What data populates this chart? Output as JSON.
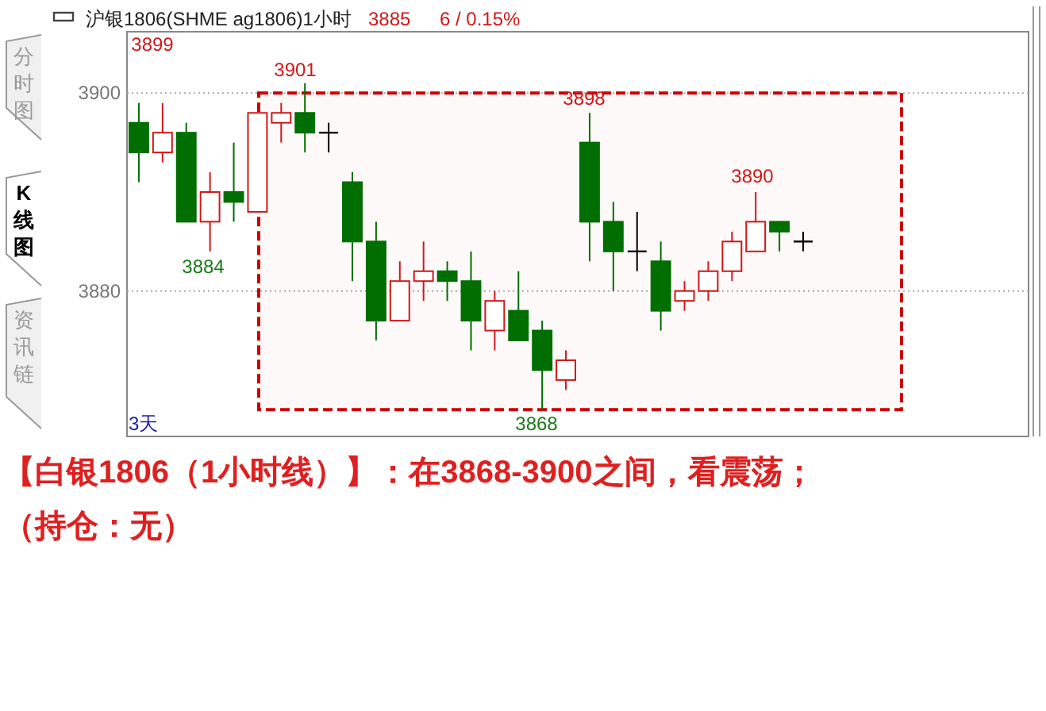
{
  "chart_data": {
    "type": "candlestick",
    "title": "沪银1806(SHME ag1806)1小时",
    "categories": [
      null,
      null,
      null,
      null,
      null,
      null,
      null,
      null,
      null,
      null,
      null,
      null,
      null,
      null,
      null,
      null,
      null,
      null,
      null,
      null,
      null,
      null,
      null,
      null,
      null,
      null,
      null,
      null,
      null,
      null,
      null,
      null,
      null,
      null,
      null,
      null,
      null,
      null
    ],
    "ohlc": [
      [
        3897,
        3899,
        3891,
        3894
      ],
      [
        3894,
        3899,
        3893,
        3896
      ],
      [
        3896,
        3897,
        3887,
        3887
      ],
      [
        3887,
        3892,
        3884,
        3890
      ],
      [
        3890,
        3895,
        3887,
        3889
      ],
      [
        3888,
        3898,
        3888,
        3898
      ],
      [
        3897,
        3899,
        3895,
        3898
      ],
      [
        3898,
        3901,
        3894,
        3896
      ],
      [
        3896,
        3897,
        3894,
        3896
      ],
      [
        3891,
        3892,
        3881,
        3885
      ],
      [
        3885,
        3887,
        3875,
        3877
      ],
      [
        3877,
        3883,
        3877,
        3881
      ],
      [
        3881,
        3885,
        3879,
        3882
      ],
      [
        3882,
        3883,
        3879,
        3881
      ],
      [
        3881,
        3884,
        3874,
        3877
      ],
      [
        3876,
        3880,
        3874,
        3879
      ],
      [
        3878,
        3882,
        3875,
        3875
      ],
      [
        3876,
        3877,
        3868,
        3872
      ],
      [
        3871,
        3874,
        3870,
        3873
      ],
      [
        3895,
        3898,
        3883,
        3887
      ],
      [
        3887,
        3889,
        3880,
        3884
      ],
      [
        3884,
        3888,
        3882,
        3884
      ],
      [
        3883,
        3885,
        3876,
        3878
      ],
      [
        3879,
        3881,
        3878,
        3880
      ],
      [
        3880,
        3883,
        3879,
        3882
      ],
      [
        3882,
        3886,
        3881,
        3885
      ],
      [
        3884,
        3890,
        3884,
        3887
      ],
      [
        3887,
        3887,
        3884,
        3886
      ],
      [
        3885,
        3886,
        3884,
        3885
      ],
      null,
      null,
      null,
      null,
      null,
      null,
      null,
      null,
      null
    ],
    "colors": [
      "#006e00",
      "#d01818",
      "#006e00",
      "#d01818",
      "#006e00",
      "#d01818",
      "#d01818",
      "#006e00",
      "#000000",
      "#006e00",
      "#006e00",
      "#d01818",
      "#d01818",
      "#006e00",
      "#006e00",
      "#d01818",
      "#006e00",
      "#006e00",
      "#d01818",
      "#006e00",
      "#006e00",
      "#000000",
      "#006e00",
      "#d01818",
      "#d01818",
      "#d01818",
      "#d01818",
      "#006e00",
      "#000000",
      null,
      null,
      null,
      null,
      null,
      null,
      null,
      null,
      null
    ],
    "ylim": [
      3865.3,
      3906.2
    ],
    "yticks": [
      3880,
      3900
    ],
    "grid": "y",
    "bands": [
      {
        "axis": "y",
        "from": 3868,
        "to": 3900,
        "color": "#cc0000"
      }
    ],
    "annotations": [
      "3899",
      "3901",
      "3884",
      "3898",
      "3868",
      "3890",
      "3885",
      "6 / 0.15%",
      "3天",
      "分时图",
      "K线图",
      "资讯链",
      "【白银1806（1小时线）】：在3868-3900之间，看震荡；",
      "（持仓：无）"
    ]
  }
}
